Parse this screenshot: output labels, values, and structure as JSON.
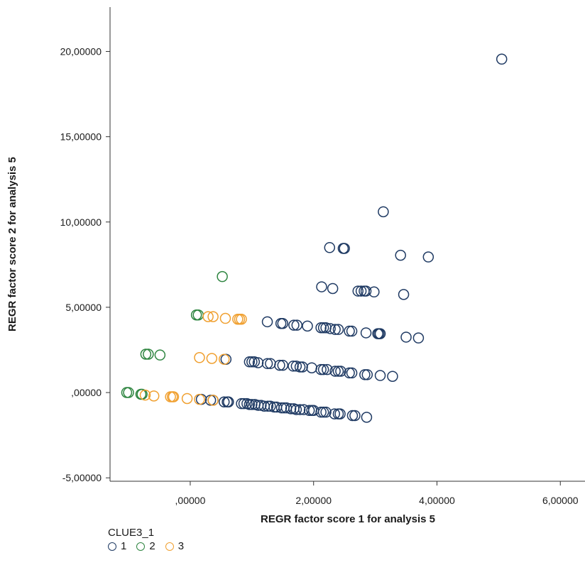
{
  "chart_data": {
    "type": "scatter",
    "title": "",
    "xlabel": "REGR factor score 1 for analysis 5",
    "ylabel": "REGR factor score 2 for analysis 5",
    "xlim": [
      -1.3,
      6.4
    ],
    "ylim": [
      -5.2,
      22.6
    ],
    "x_ticks": [
      {
        "value": 0,
        "label": ",00000"
      },
      {
        "value": 2,
        "label": "2,00000"
      },
      {
        "value": 4,
        "label": "4,00000"
      },
      {
        "value": 6,
        "label": "6,00000"
      }
    ],
    "y_ticks": [
      {
        "value": -5,
        "label": "-5,00000"
      },
      {
        "value": 0,
        "label": ",00000"
      },
      {
        "value": 5,
        "label": "5,00000"
      },
      {
        "value": 10,
        "label": "10,00000"
      },
      {
        "value": 15,
        "label": "15,00000"
      },
      {
        "value": 20,
        "label": "20,00000"
      }
    ],
    "grid": false,
    "legend": {
      "title": "CLUE3_1",
      "placement": "bottom-left"
    },
    "series": [
      {
        "name": "1",
        "color": "#1f3a63",
        "marker": "open-circle",
        "points": [
          [
            5.05,
            19.55
          ],
          [
            3.13,
            10.6
          ],
          [
            2.26,
            8.5
          ],
          [
            2.48,
            8.45
          ],
          [
            2.5,
            8.45
          ],
          [
            3.41,
            8.05
          ],
          [
            3.86,
            7.95
          ],
          [
            2.13,
            6.2
          ],
          [
            2.31,
            6.1
          ],
          [
            2.72,
            5.95
          ],
          [
            2.77,
            5.95
          ],
          [
            2.82,
            5.95
          ],
          [
            2.85,
            5.95
          ],
          [
            2.98,
            5.9
          ],
          [
            3.46,
            5.75
          ],
          [
            1.25,
            4.15
          ],
          [
            1.47,
            4.05
          ],
          [
            1.5,
            4.05
          ],
          [
            1.68,
            3.95
          ],
          [
            1.73,
            3.95
          ],
          [
            1.9,
            3.9
          ],
          [
            2.12,
            3.8
          ],
          [
            2.16,
            3.8
          ],
          [
            2.2,
            3.8
          ],
          [
            2.27,
            3.75
          ],
          [
            2.35,
            3.7
          ],
          [
            2.4,
            3.7
          ],
          [
            2.58,
            3.6
          ],
          [
            2.62,
            3.6
          ],
          [
            2.85,
            3.5
          ],
          [
            3.04,
            3.45
          ],
          [
            3.06,
            3.45
          ],
          [
            3.08,
            3.45
          ],
          [
            3.5,
            3.25
          ],
          [
            3.7,
            3.2
          ],
          [
            0.58,
            1.95
          ],
          [
            0.96,
            1.8
          ],
          [
            1.0,
            1.8
          ],
          [
            1.04,
            1.8
          ],
          [
            1.1,
            1.75
          ],
          [
            1.25,
            1.7
          ],
          [
            1.3,
            1.7
          ],
          [
            1.45,
            1.6
          ],
          [
            1.5,
            1.6
          ],
          [
            1.67,
            1.55
          ],
          [
            1.72,
            1.55
          ],
          [
            1.78,
            1.5
          ],
          [
            1.82,
            1.5
          ],
          [
            1.97,
            1.45
          ],
          [
            2.12,
            1.35
          ],
          [
            2.16,
            1.35
          ],
          [
            2.22,
            1.35
          ],
          [
            2.35,
            1.25
          ],
          [
            2.4,
            1.25
          ],
          [
            2.44,
            1.25
          ],
          [
            2.58,
            1.15
          ],
          [
            2.62,
            1.15
          ],
          [
            2.83,
            1.05
          ],
          [
            2.87,
            1.05
          ],
          [
            3.08,
            1.0
          ],
          [
            3.28,
            0.95
          ],
          [
            0.18,
            -0.4
          ],
          [
            0.33,
            -0.45
          ],
          [
            0.37,
            -0.45
          ],
          [
            0.55,
            -0.55
          ],
          [
            0.6,
            -0.55
          ],
          [
            0.62,
            -0.55
          ],
          [
            0.83,
            -0.65
          ],
          [
            0.87,
            -0.65
          ],
          [
            0.92,
            -0.65
          ],
          [
            0.96,
            -0.7
          ],
          [
            1.0,
            -0.7
          ],
          [
            1.05,
            -0.7
          ],
          [
            1.1,
            -0.75
          ],
          [
            1.15,
            -0.75
          ],
          [
            1.2,
            -0.8
          ],
          [
            1.26,
            -0.8
          ],
          [
            1.3,
            -0.8
          ],
          [
            1.36,
            -0.85
          ],
          [
            1.4,
            -0.85
          ],
          [
            1.48,
            -0.9
          ],
          [
            1.52,
            -0.9
          ],
          [
            1.56,
            -0.9
          ],
          [
            1.63,
            -0.95
          ],
          [
            1.68,
            -0.95
          ],
          [
            1.72,
            -1.0
          ],
          [
            1.78,
            -1.0
          ],
          [
            1.84,
            -1.0
          ],
          [
            1.93,
            -1.05
          ],
          [
            1.97,
            -1.05
          ],
          [
            2.0,
            -1.05
          ],
          [
            2.12,
            -1.15
          ],
          [
            2.16,
            -1.15
          ],
          [
            2.2,
            -1.15
          ],
          [
            2.34,
            -1.25
          ],
          [
            2.4,
            -1.25
          ],
          [
            2.43,
            -1.25
          ],
          [
            2.63,
            -1.35
          ],
          [
            2.67,
            -1.35
          ],
          [
            2.86,
            -1.45
          ]
        ]
      },
      {
        "name": "2",
        "color": "#2e8540",
        "marker": "open-circle",
        "points": [
          [
            0.52,
            6.8
          ],
          [
            0.1,
            4.55
          ],
          [
            0.13,
            4.55
          ],
          [
            -0.72,
            2.25
          ],
          [
            -0.68,
            2.25
          ],
          [
            -0.49,
            2.2
          ],
          [
            -1.03,
            0.0
          ],
          [
            -1.0,
            0.0
          ],
          [
            -0.8,
            -0.1
          ],
          [
            -0.78,
            -0.1
          ]
        ]
      },
      {
        "name": "3",
        "color": "#f0a030",
        "marker": "open-circle",
        "points": [
          [
            0.29,
            4.45
          ],
          [
            0.37,
            4.45
          ],
          [
            0.57,
            4.35
          ],
          [
            0.77,
            4.3
          ],
          [
            0.8,
            4.3
          ],
          [
            0.83,
            4.3
          ],
          [
            0.15,
            2.05
          ],
          [
            0.35,
            2.0
          ],
          [
            0.55,
            1.95
          ],
          [
            -0.73,
            -0.15
          ],
          [
            -0.59,
            -0.2
          ],
          [
            -0.32,
            -0.25
          ],
          [
            -0.29,
            -0.25
          ],
          [
            -0.27,
            -0.25
          ],
          [
            -0.05,
            -0.35
          ],
          [
            0.15,
            -0.4
          ],
          [
            0.37,
            -0.45
          ]
        ]
      }
    ]
  }
}
